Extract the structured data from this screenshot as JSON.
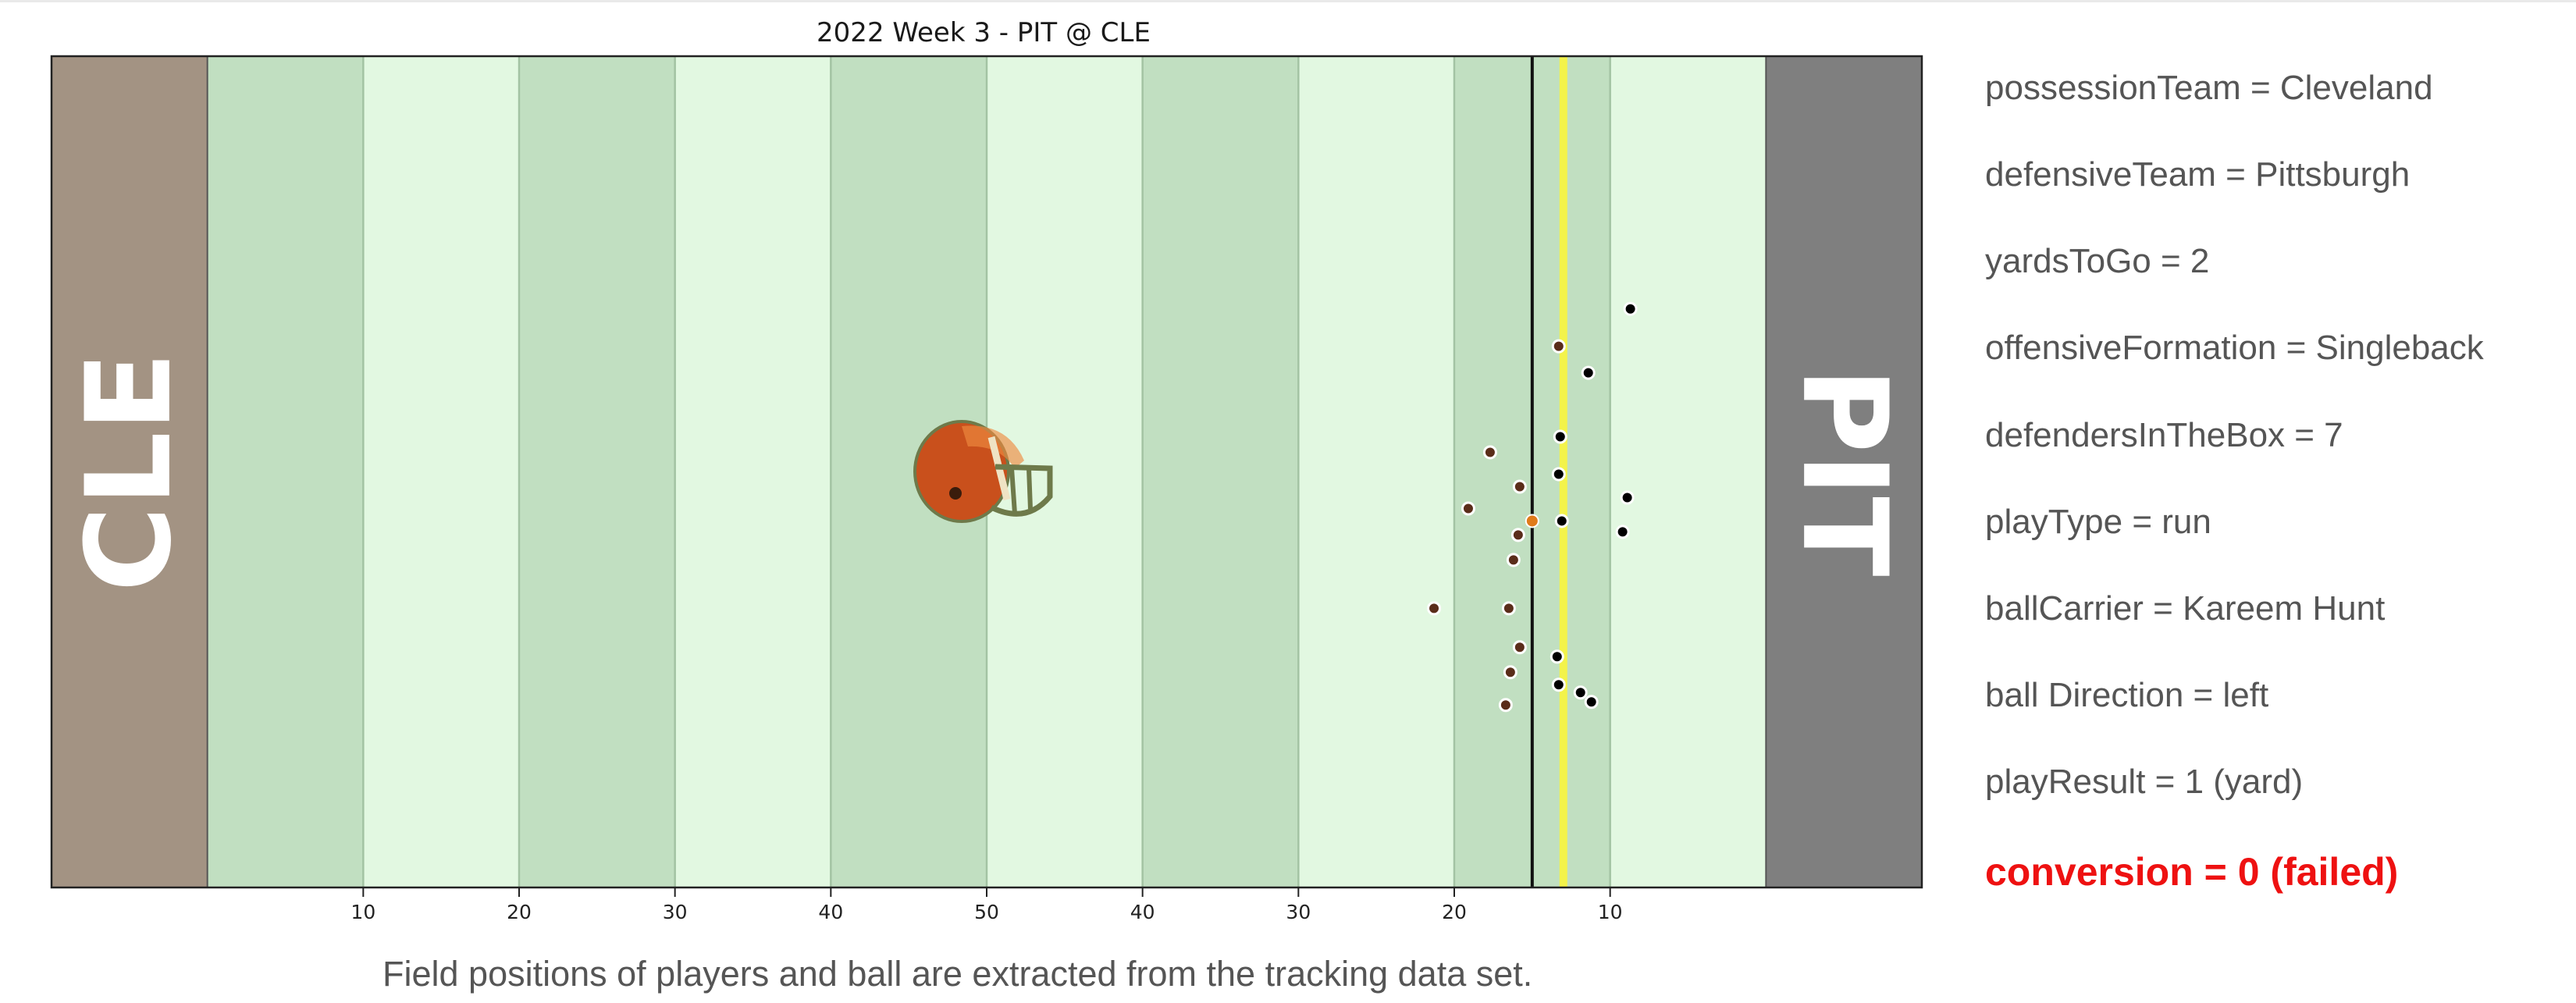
{
  "chart_data": {
    "type": "scatter",
    "title": "2022 Week 3 - PIT @ CLE",
    "x_domain": [
      0,
      120
    ],
    "y_domain": [
      0,
      53.3
    ],
    "yard_ticks": [
      {
        "x": 20,
        "label": "10"
      },
      {
        "x": 30,
        "label": "20"
      },
      {
        "x": 40,
        "label": "30"
      },
      {
        "x": 50,
        "label": "40"
      },
      {
        "x": 60,
        "label": "50"
      },
      {
        "x": 70,
        "label": "40"
      },
      {
        "x": 80,
        "label": "30"
      },
      {
        "x": 90,
        "label": "20"
      },
      {
        "x": 100,
        "label": "10"
      }
    ],
    "endzones": {
      "left": {
        "label": "CLE",
        "color": "#a39383"
      },
      "right": {
        "label": "PIT",
        "color": "#7f7f7f"
      }
    },
    "line_of_scrimmage_x": 95.0,
    "first_down_x": 97.0,
    "logo": "cleveland-browns-helmet-icon",
    "series": [
      {
        "name": "Cleveland",
        "color": "#5a2d1a",
        "points": [
          {
            "x": 96.7,
            "y": 34.7
          },
          {
            "x": 92.3,
            "y": 27.9
          },
          {
            "x": 94.2,
            "y": 25.7
          },
          {
            "x": 90.9,
            "y": 24.3
          },
          {
            "x": 94.1,
            "y": 22.6
          },
          {
            "x": 93.8,
            "y": 21.0
          },
          {
            "x": 93.5,
            "y": 17.9
          },
          {
            "x": 88.7,
            "y": 17.9
          },
          {
            "x": 94.2,
            "y": 15.4
          },
          {
            "x": 93.6,
            "y": 13.8
          },
          {
            "x": 93.3,
            "y": 11.7
          }
        ]
      },
      {
        "name": "Pittsburgh",
        "color": "#000000",
        "points": [
          {
            "x": 101.3,
            "y": 37.1
          },
          {
            "x": 98.6,
            "y": 33.0
          },
          {
            "x": 96.8,
            "y": 28.9
          },
          {
            "x": 96.7,
            "y": 26.5
          },
          {
            "x": 101.1,
            "y": 25.0
          },
          {
            "x": 96.9,
            "y": 23.5
          },
          {
            "x": 100.8,
            "y": 22.8
          },
          {
            "x": 98.1,
            "y": 12.5
          },
          {
            "x": 96.6,
            "y": 14.8
          },
          {
            "x": 96.7,
            "y": 13.0
          },
          {
            "x": 98.8,
            "y": 11.9
          }
        ]
      },
      {
        "name": "ball",
        "color": "#e07b1a",
        "points": [
          {
            "x": 95.0,
            "y": 23.5
          }
        ]
      }
    ]
  },
  "info": {
    "possession": "possessionTeam = Cleveland",
    "defensive": "defensiveTeam = Pittsburgh",
    "yards_to_go": "yardsToGo = 2",
    "formation": "offensiveFormation = Singleback",
    "defenders_box": "defendersInTheBox = 7",
    "play_type": "playType = run",
    "ball_carrier": "ballCarrier = Kareem Hunt",
    "ball_direction": "ball Direction = left",
    "play_result": "playResult = 1 (yard)",
    "conversion": "conversion = 0 (failed)"
  },
  "footnote": "Field positions of players and ball are extracted from the tracking data set."
}
